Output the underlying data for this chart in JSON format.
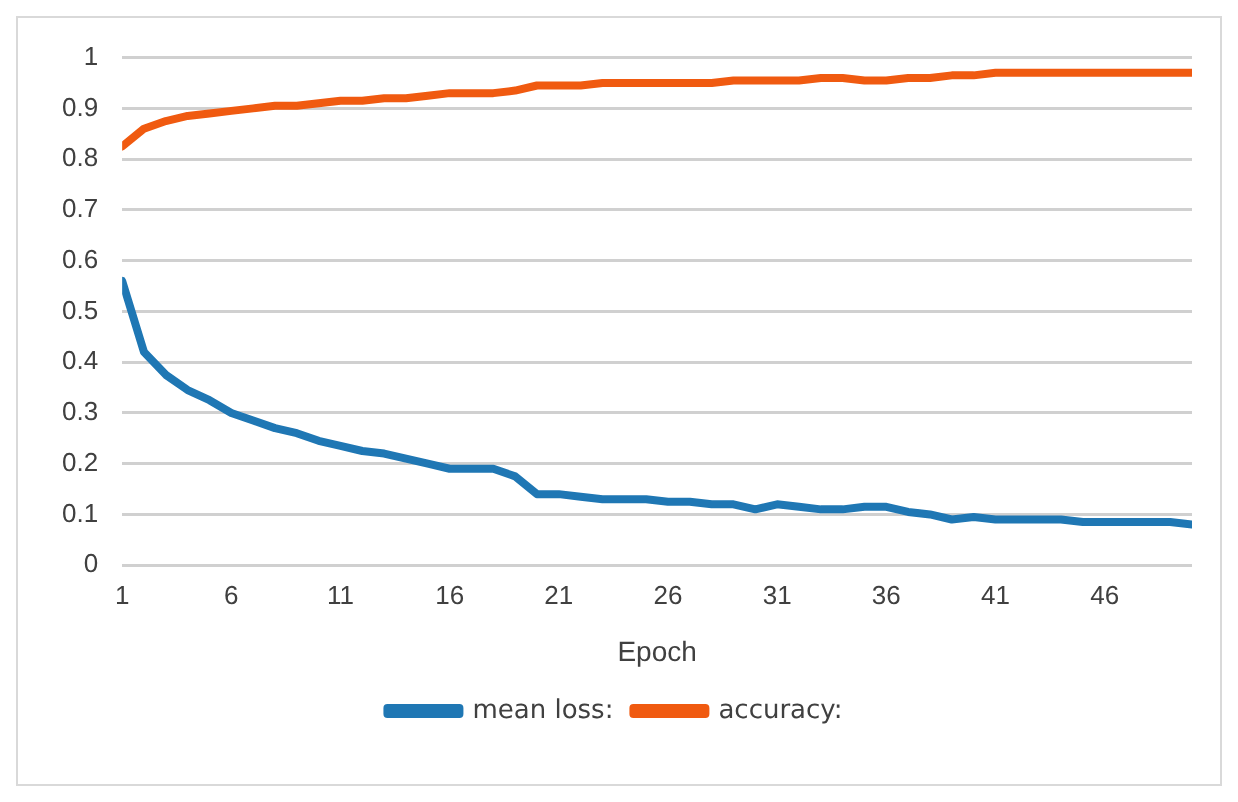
{
  "chart_data": {
    "type": "line",
    "xlabel": "Epoch",
    "x": [
      1,
      2,
      3,
      4,
      5,
      6,
      7,
      8,
      9,
      10,
      11,
      12,
      13,
      14,
      15,
      16,
      17,
      18,
      19,
      20,
      21,
      22,
      23,
      24,
      25,
      26,
      27,
      28,
      29,
      30,
      31,
      32,
      33,
      34,
      35,
      36,
      37,
      38,
      39,
      40,
      41,
      42,
      43,
      44,
      45,
      46,
      47,
      48,
      49,
      50
    ],
    "series": [
      {
        "name": "mean loss:",
        "color": "#1f77b4",
        "values": [
          0.56,
          0.42,
          0.375,
          0.345,
          0.325,
          0.3,
          0.285,
          0.27,
          0.26,
          0.245,
          0.235,
          0.225,
          0.22,
          0.21,
          0.2,
          0.19,
          0.19,
          0.19,
          0.175,
          0.14,
          0.14,
          0.135,
          0.13,
          0.13,
          0.13,
          0.125,
          0.125,
          0.12,
          0.12,
          0.11,
          0.12,
          0.115,
          0.11,
          0.11,
          0.115,
          0.115,
          0.105,
          0.1,
          0.09,
          0.095,
          0.09,
          0.09,
          0.09,
          0.09,
          0.085,
          0.085,
          0.085,
          0.085,
          0.085,
          0.08
        ]
      },
      {
        "name": "accuracy:",
        "color": "#f05a10",
        "values": [
          0.825,
          0.86,
          0.875,
          0.885,
          0.89,
          0.895,
          0.9,
          0.905,
          0.905,
          0.91,
          0.915,
          0.915,
          0.92,
          0.92,
          0.925,
          0.93,
          0.93,
          0.93,
          0.935,
          0.945,
          0.945,
          0.945,
          0.95,
          0.95,
          0.95,
          0.95,
          0.95,
          0.95,
          0.955,
          0.955,
          0.955,
          0.955,
          0.96,
          0.96,
          0.955,
          0.955,
          0.96,
          0.96,
          0.965,
          0.965,
          0.97,
          0.97,
          0.97,
          0.97,
          0.97,
          0.97,
          0.97,
          0.97,
          0.97,
          0.97
        ]
      }
    ],
    "xlim": [
      1,
      50
    ],
    "xticks": [
      1,
      6,
      11,
      16,
      21,
      26,
      31,
      36,
      41,
      46
    ],
    "ylim": [
      0,
      1
    ],
    "yticks": [
      0,
      0.1,
      0.2,
      0.3,
      0.4,
      0.5,
      0.6,
      0.7,
      0.8,
      0.9,
      1
    ],
    "grid": "y",
    "legend": "bottom",
    "marker": "none",
    "line_style": "solid"
  }
}
